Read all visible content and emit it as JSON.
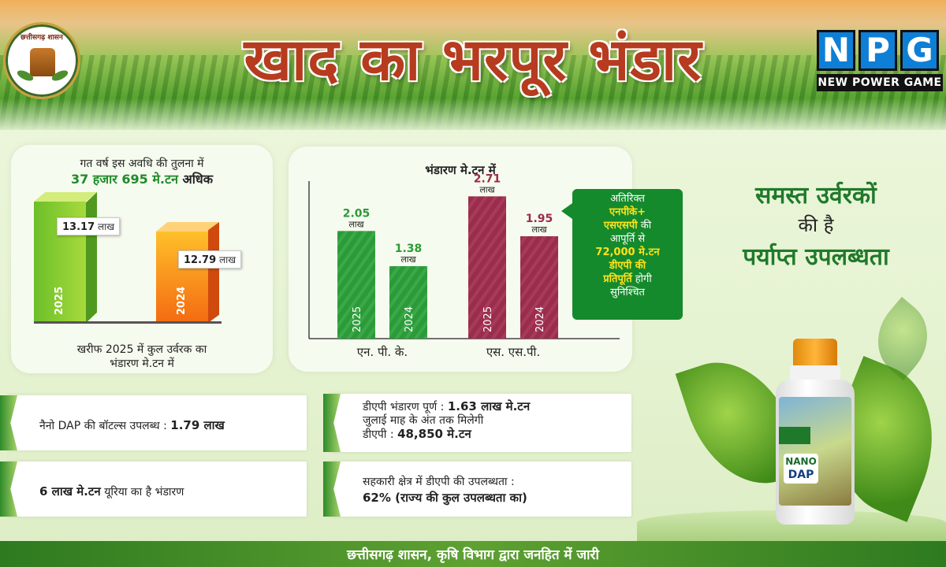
{
  "header": {
    "title": "खाद का भरपूर भंडार",
    "emblem_text": "छत्तीसगढ़ शासन",
    "logo_letters": [
      "N",
      "P",
      "G"
    ],
    "logo_sub": "NEW POWER GAME"
  },
  "panel1": {
    "heading_line1": "गत वर्ष इस अवधि की तुलना में",
    "heading_line2_green": "37 हजार 695 मे.टन",
    "heading_line2_rest": "अधिक",
    "footer_line1": "खरीफ 2025 में कुल उर्वरक का",
    "footer_line2": "भंडारण मे.टन में",
    "bars": [
      {
        "year": "2025",
        "value": "13.17",
        "unit": "लाख"
      },
      {
        "year": "2024",
        "value": "12.79",
        "unit": "लाख"
      }
    ]
  },
  "chart_data": {
    "type": "bar",
    "title": "भंडारण मे.टन में",
    "categories": [
      "एन. पी. के.",
      "एस. एस.पी."
    ],
    "series": [
      {
        "name": "2025",
        "values": [
          2.05,
          2.71
        ]
      },
      {
        "name": "2024",
        "values": [
          1.38,
          1.95
        ]
      }
    ],
    "value_labels": [
      "2.05",
      "1.38",
      "2.71",
      "1.95"
    ],
    "unit_label": "लाख",
    "ylim": [
      0,
      3
    ],
    "colors": {
      "npk": "#2d9a3a",
      "ssp": "#9a2c4c"
    }
  },
  "callout": {
    "line1": "अतिरिक्त",
    "line2": "एनपीके+",
    "line3": "एसएसपी",
    "line3b": "की",
    "line4": "आपूर्ति से",
    "line5": "72,000 मे.टन",
    "line6": "डीएपी की",
    "line7": "प्रतिपूर्ति",
    "line7b": "होगी",
    "line8": "सुनिश्चित"
  },
  "right_title": {
    "line1": "समस्त उर्वरकों",
    "line2": "की है",
    "line3": "पर्याप्त उपलब्धता"
  },
  "info": {
    "nano_dap_text": "नैनो DAP की बॉटल्स उपलब्ध :",
    "nano_dap_value": "1.79 लाख",
    "urea_value": "6 लाख मे.टन",
    "urea_text": "यूरिया का है भंडारण",
    "dap_line1_text": "डीएपी भंडारण पूर्ण :",
    "dap_line1_value": "1.63 लाख मे.टन",
    "dap_line2": "जुलाई माह के अंत तक मिलेगी",
    "dap_line3_text": "डीएपी :",
    "dap_line3_value": "48,850 मे.टन",
    "coop_line1": "सहकारी क्षेत्र में डीएपी की उपलब्धता :",
    "coop_line2": "62% (राज्य की कुल उपलब्धता का)"
  },
  "product": {
    "label_line1": "NANO",
    "label_line2": "DAP"
  },
  "footer": {
    "text": "छत्तीसगढ़ शासन, कृषि विभाग द्वारा जनहित में जारी"
  }
}
